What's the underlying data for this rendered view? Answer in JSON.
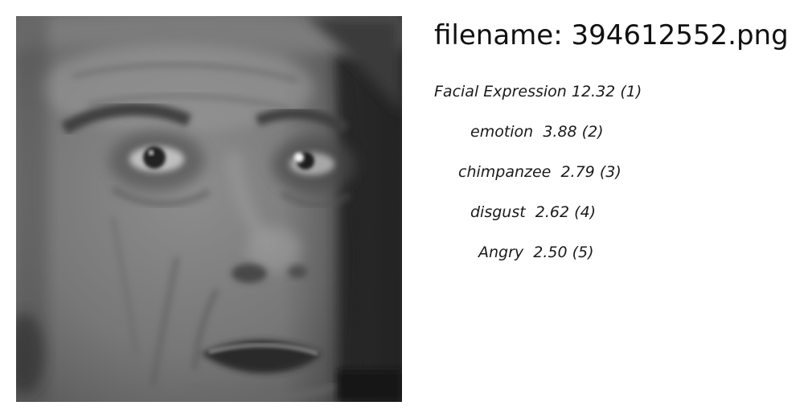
{
  "header": {
    "filename_prefix": "filename:",
    "filename": "394612552.png"
  },
  "labels": [
    {
      "name": "Facial Expression",
      "score": "12.32",
      "rank": "(1)"
    },
    {
      "name": "emotion",
      "score": "3.88",
      "rank": "(2)"
    },
    {
      "name": "chimpanzee",
      "score": "2.79",
      "rank": "(3)"
    },
    {
      "name": "disgust",
      "score": "2.62",
      "rank": "(4)"
    },
    {
      "name": "Angry",
      "score": "2.50",
      "rank": "(5)"
    }
  ]
}
